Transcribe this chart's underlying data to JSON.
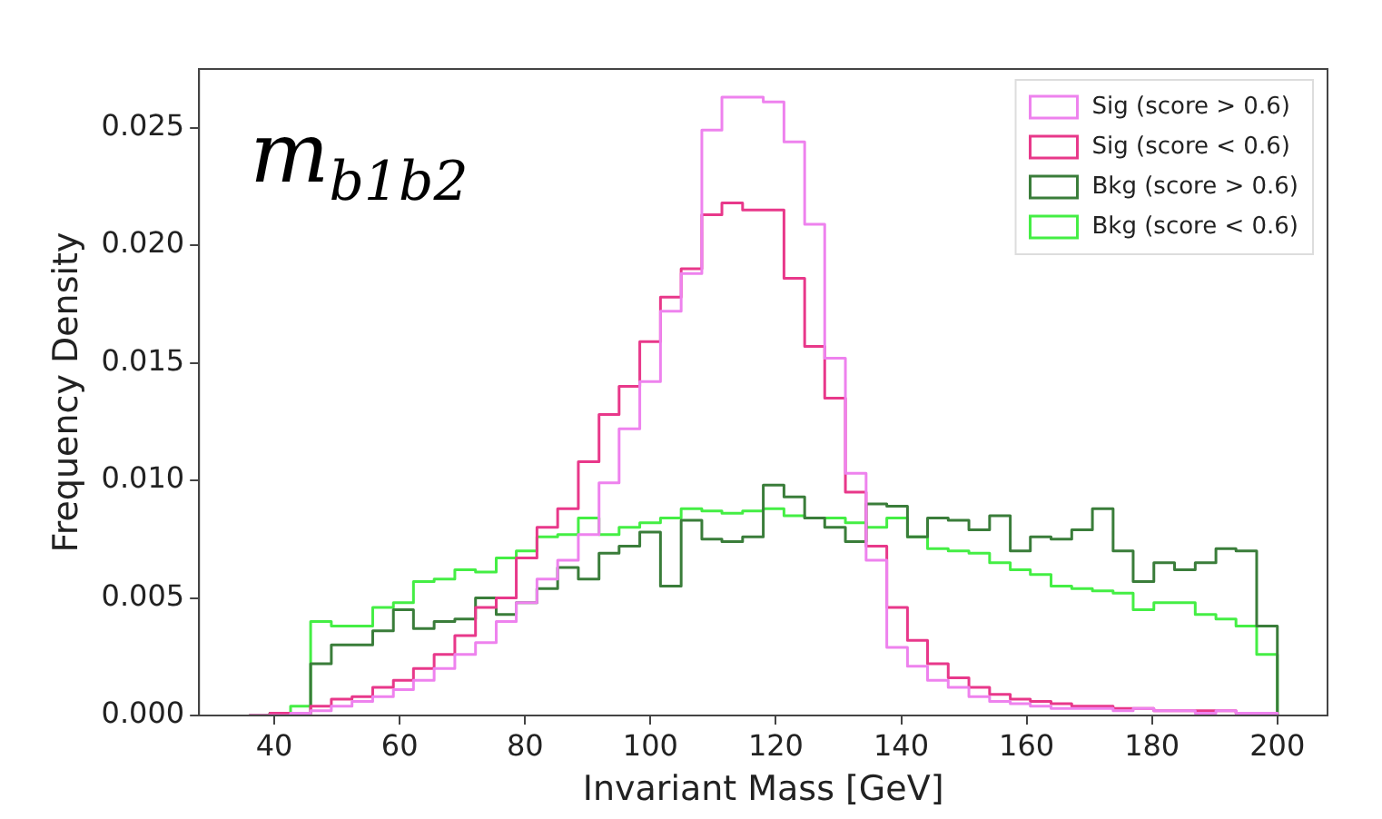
{
  "chart_data": {
    "type": "histogram",
    "xlabel": "Invariant Mass [GeV]",
    "ylabel": "Frequency Density",
    "annotations": [
      "m$_{b1b2}$"
    ],
    "bins": [
      36,
      39.3,
      42.6,
      45.8,
      49.1,
      52.4,
      55.7,
      59,
      62.2,
      65.5,
      68.8,
      72.1,
      75.4,
      78.6,
      81.9,
      85.2,
      88.5,
      91.8,
      95,
      98.3,
      101.6,
      104.9,
      108.2,
      111.4,
      114.7,
      118,
      121.3,
      124.6,
      127.8,
      131.1,
      134.4,
      137.7,
      141,
      144.2,
      147.5,
      150.8,
      154.1,
      157.4,
      160.6,
      163.9,
      167.2,
      170.5,
      173.8,
      177,
      180.3,
      183.6,
      186.9,
      190.2,
      193.4,
      196.7,
      200
    ],
    "series": [
      {
        "name": "Sig (score > 0.6)",
        "color": "#ee82ee",
        "values": [
          0,
          0,
          0.0001,
          0.0002,
          0.0004,
          0.0006,
          0.0008,
          0.0011,
          0.0015,
          0.002,
          0.0026,
          0.0031,
          0.004,
          0.0048,
          0.0058,
          0.0066,
          0.0077,
          0.0099,
          0.0122,
          0.0142,
          0.0172,
          0.0188,
          0.0249,
          0.0263,
          0.0263,
          0.0261,
          0.0244,
          0.0209,
          0.0152,
          0.0103,
          0.0066,
          0.0029,
          0.0021,
          0.0015,
          0.0012,
          0.0008,
          0.0006,
          0.0005,
          0.0004,
          0.0003,
          0.0003,
          0.0003,
          0.0002,
          0.0003,
          0.0002,
          0.0002,
          0.0001,
          0.0002,
          0.0001,
          0.0001
        ]
      },
      {
        "name": "Sig (score < 0.6)",
        "color": "#e8388a",
        "values": [
          0,
          0.0001,
          0.0001,
          0.0004,
          0.0007,
          0.0008,
          0.0012,
          0.0015,
          0.002,
          0.0026,
          0.0034,
          0.0046,
          0.005,
          0.0067,
          0.008,
          0.0088,
          0.0108,
          0.0128,
          0.014,
          0.0159,
          0.0178,
          0.019,
          0.0213,
          0.0218,
          0.0215,
          0.0215,
          0.0186,
          0.0157,
          0.0135,
          0.0095,
          0.0072,
          0.0046,
          0.0032,
          0.0022,
          0.0016,
          0.0012,
          0.0009,
          0.0007,
          0.0006,
          0.0005,
          0.0004,
          0.0004,
          0.0003,
          0.0003,
          0.0002,
          0.0002,
          0.0002,
          0.0002,
          0.0001,
          0.0001
        ]
      },
      {
        "name": "Bkg (score > 0.6)",
        "color": "#3a7d3a",
        "values": [
          0,
          0.0001,
          0.0001,
          0.0022,
          0.003,
          0.003,
          0.0036,
          0.0045,
          0.0037,
          0.004,
          0.0041,
          0.005,
          0.0043,
          0.0048,
          0.0054,
          0.0063,
          0.0058,
          0.0069,
          0.0072,
          0.0078,
          0.0055,
          0.0083,
          0.0075,
          0.0074,
          0.0076,
          0.0098,
          0.0093,
          0.0084,
          0.008,
          0.0074,
          0.009,
          0.0089,
          0.0076,
          0.0084,
          0.0083,
          0.0079,
          0.0085,
          0.007,
          0.0076,
          0.0075,
          0.0079,
          0.0088,
          0.007,
          0.0057,
          0.0065,
          0.0062,
          0.0065,
          0.0071,
          0.007,
          0.0038
        ]
      },
      {
        "name": "Bkg (score < 0.6)",
        "color": "#44ee44",
        "values": [
          0,
          0.0001,
          0.0004,
          0.004,
          0.0038,
          0.0038,
          0.0046,
          0.0048,
          0.0057,
          0.0058,
          0.0062,
          0.0061,
          0.0067,
          0.007,
          0.0076,
          0.0077,
          0.0084,
          0.0077,
          0.008,
          0.0082,
          0.0084,
          0.0088,
          0.0087,
          0.0086,
          0.0087,
          0.0088,
          0.0085,
          0.0084,
          0.0084,
          0.0082,
          0.008,
          0.0084,
          0.0076,
          0.0071,
          0.007,
          0.0069,
          0.0065,
          0.0062,
          0.006,
          0.0055,
          0.0054,
          0.0053,
          0.0052,
          0.0045,
          0.0048,
          0.0048,
          0.0043,
          0.0041,
          0.0038,
          0.0026
        ]
      }
    ],
    "xlim": [
      28,
      208
    ],
    "xticks": [
      40,
      60,
      80,
      100,
      120,
      140,
      160,
      180,
      200
    ],
    "ylim": [
      0,
      0.0275
    ],
    "yticks": [
      {
        "value": 0,
        "label": "0.000"
      },
      {
        "value": 0.005,
        "label": "0.005"
      },
      {
        "value": 0.01,
        "label": "0.010"
      },
      {
        "value": 0.015,
        "label": "0.015"
      },
      {
        "value": 0.02,
        "label": "0.020"
      },
      {
        "value": 0.025,
        "label": "0.025"
      }
    ],
    "legend": "top right",
    "grid": false
  }
}
